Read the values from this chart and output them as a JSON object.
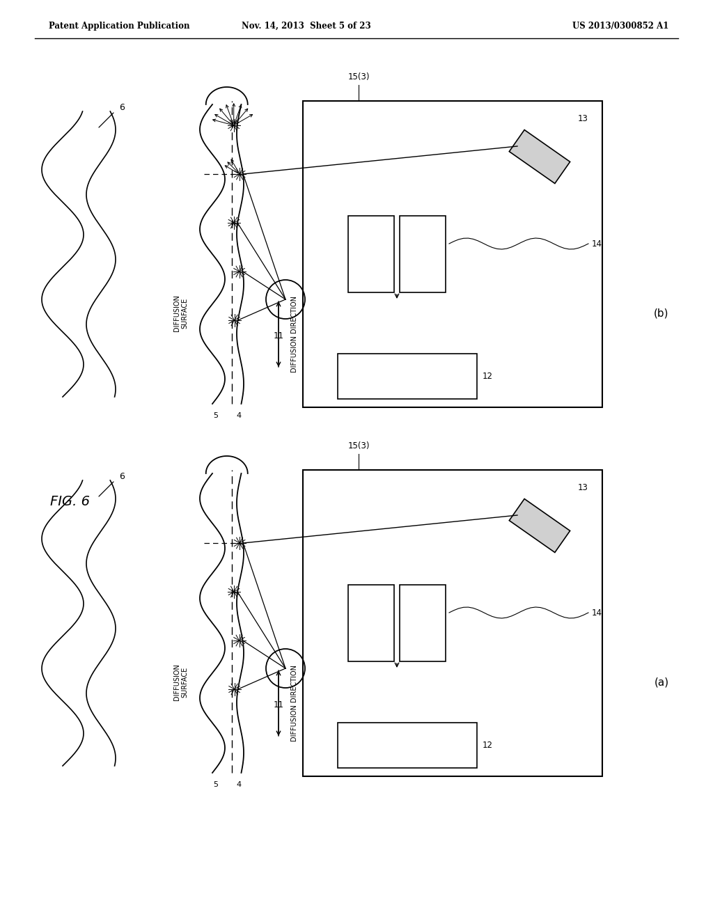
{
  "bg_color": "#ffffff",
  "header_left": "Patent Application Publication",
  "header_mid": "Nov. 14, 2013  Sheet 5 of 23",
  "header_right": "US 2013/0300852 A1",
  "fig_label": "FIG. 6"
}
